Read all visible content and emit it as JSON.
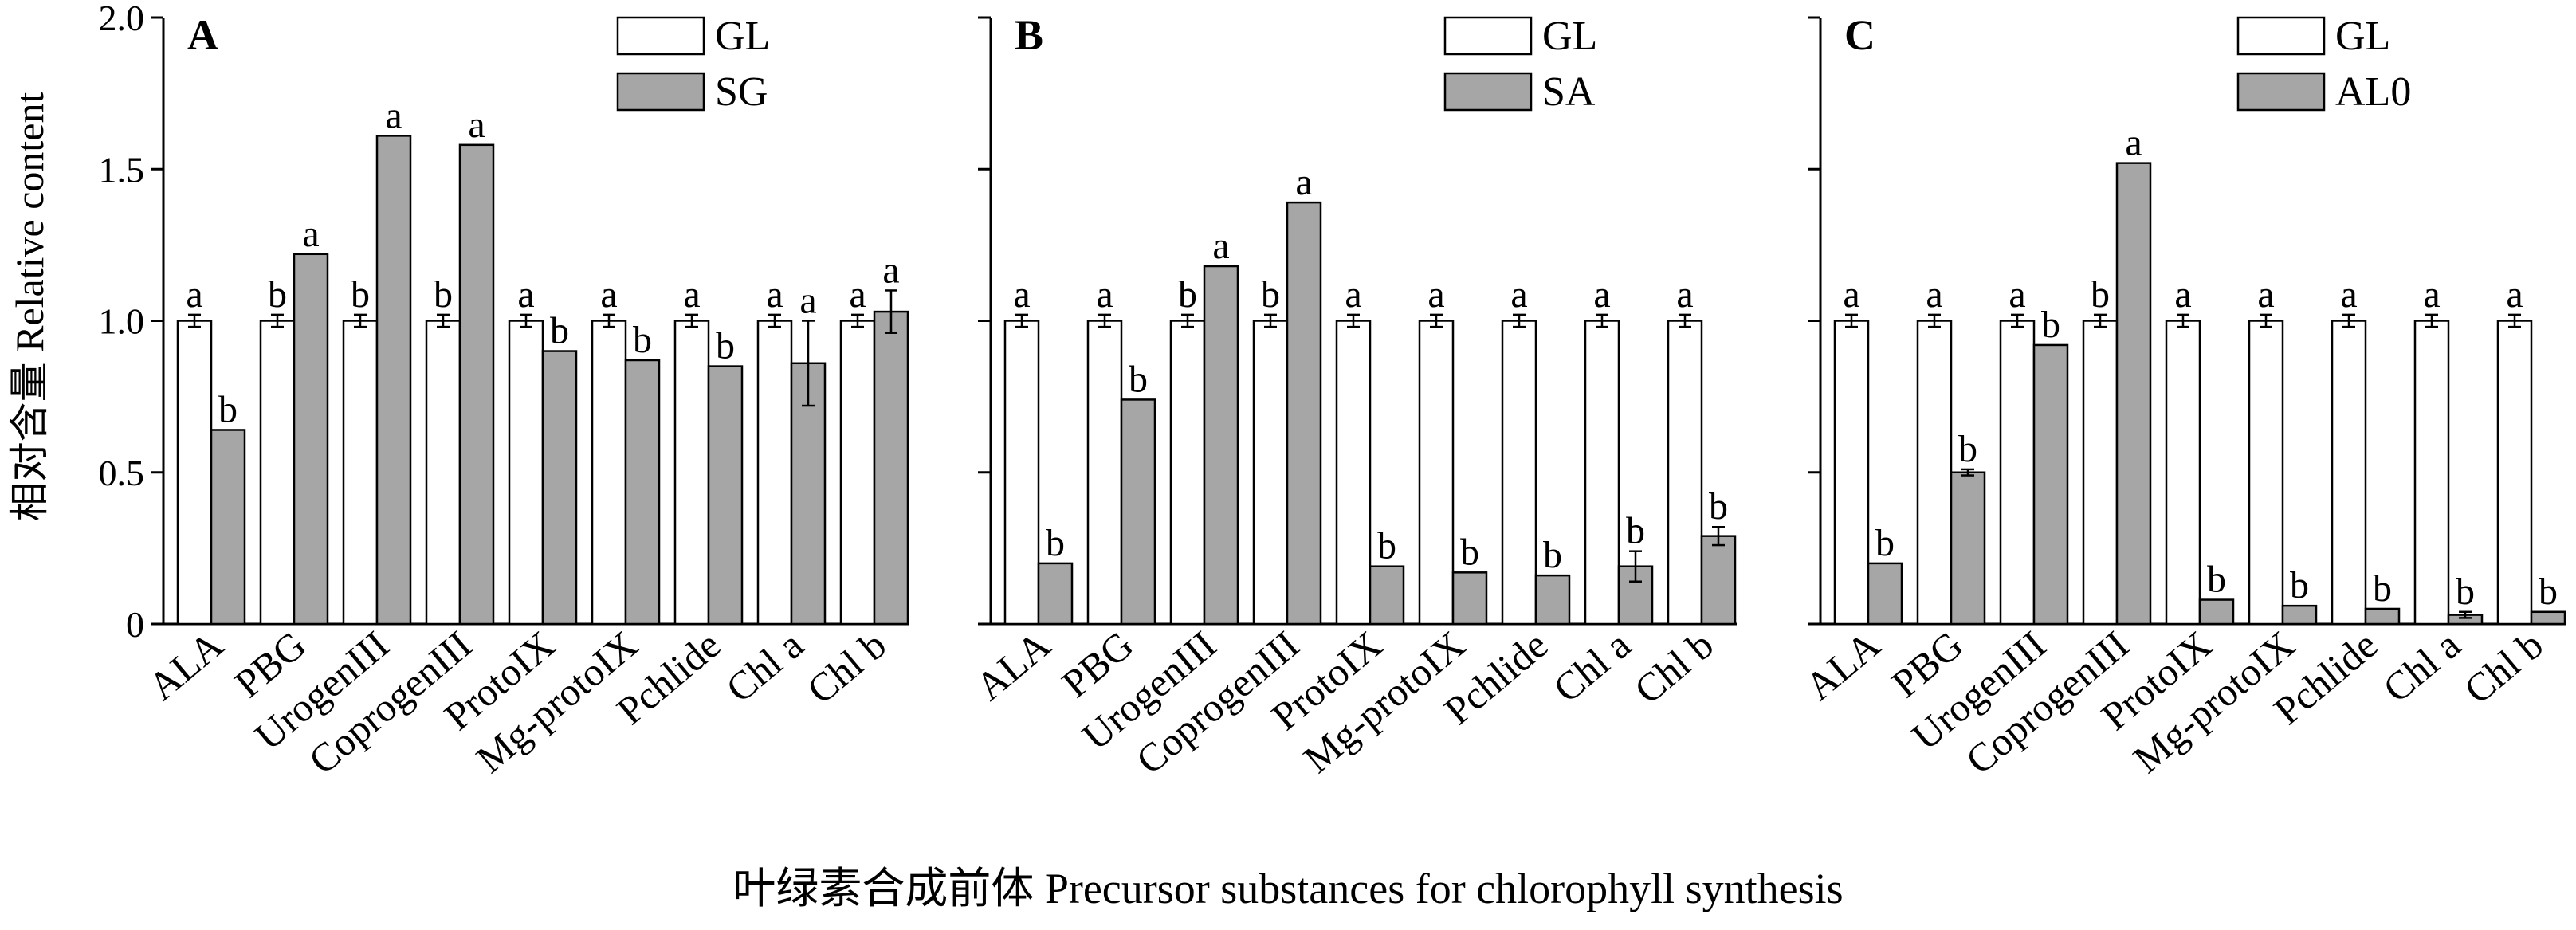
{
  "figure": {
    "y_axis_label": "相对含量 Relative content",
    "x_axis_label": "叶绿素合成前体 Precursor substances for chlorophyll synthesis"
  },
  "colors": {
    "control_fill": "#ffffff",
    "treatment_fill": "#a6a6a6",
    "stroke": "#000000"
  },
  "chart_data": [
    {
      "type": "bar",
      "panel": "A",
      "categories": [
        "ALA",
        "PBG",
        "UrogenIII",
        "CoprogenIII",
        "ProtoIX",
        "Mg-protoIX",
        "Pchlide",
        "Chl a",
        "Chl b"
      ],
      "ylim": [
        0,
        2.0
      ],
      "yticks": [
        0,
        0.5,
        1.0,
        1.5,
        2.0
      ],
      "ytick_labels": [
        "0",
        "0.5",
        "1.0",
        "1.5",
        "2.0"
      ],
      "legend": [
        "GL",
        "SG"
      ],
      "legend_position": "top-right",
      "series": [
        {
          "name": "GL",
          "values": [
            1.0,
            1.0,
            1.0,
            1.0,
            1.0,
            1.0,
            1.0,
            1.0,
            1.0
          ],
          "errors": [
            0.02,
            0.02,
            0.02,
            0.02,
            0.02,
            0.02,
            0.02,
            0.02,
            0.02
          ],
          "letters": [
            "a",
            "b",
            "b",
            "b",
            "a",
            "a",
            "a",
            "a",
            "a"
          ]
        },
        {
          "name": "SG",
          "values": [
            0.64,
            1.22,
            1.61,
            1.58,
            0.9,
            0.87,
            0.85,
            0.86,
            1.03
          ],
          "errors": [
            0.0,
            0.0,
            0.0,
            0.0,
            0.0,
            0.0,
            0.0,
            0.14,
            0.07
          ],
          "letters": [
            "b",
            "a",
            "a",
            "a",
            "b",
            "b",
            "b",
            "a",
            "a"
          ]
        }
      ]
    },
    {
      "type": "bar",
      "panel": "B",
      "categories": [
        "ALA",
        "PBG",
        "UrogenIII",
        "CoprogenIII",
        "ProtoIX",
        "Mg-protoIX",
        "Pchlide",
        "Chl a",
        "Chl b"
      ],
      "ylim": [
        0,
        2.0
      ],
      "yticks": [
        0,
        0.5,
        1.0,
        1.5,
        2.0
      ],
      "ytick_labels": [
        "",
        "",
        "",
        "",
        ""
      ],
      "legend": [
        "GL",
        "SA"
      ],
      "legend_position": "top-right",
      "series": [
        {
          "name": "GL",
          "values": [
            1.0,
            1.0,
            1.0,
            1.0,
            1.0,
            1.0,
            1.0,
            1.0,
            1.0
          ],
          "errors": [
            0.02,
            0.02,
            0.02,
            0.02,
            0.02,
            0.02,
            0.02,
            0.02,
            0.02
          ],
          "letters": [
            "a",
            "a",
            "b",
            "b",
            "a",
            "a",
            "a",
            "a",
            "a"
          ]
        },
        {
          "name": "SA",
          "values": [
            0.2,
            0.74,
            1.18,
            1.39,
            0.19,
            0.17,
            0.16,
            0.19,
            0.29
          ],
          "errors": [
            0.0,
            0.0,
            0.0,
            0.0,
            0.0,
            0.0,
            0.0,
            0.05,
            0.03
          ],
          "letters": [
            "b",
            "b",
            "a",
            "a",
            "b",
            "b",
            "b",
            "b",
            "b"
          ]
        }
      ]
    },
    {
      "type": "bar",
      "panel": "C",
      "categories": [
        "ALA",
        "PBG",
        "UrogenIII",
        "CoprogenIII",
        "ProtoIX",
        "Mg-protoIX",
        "Pchlide",
        "Chl a",
        "Chl b"
      ],
      "ylim": [
        0,
        2.0
      ],
      "yticks": [
        0,
        0.5,
        1.0,
        1.5,
        2.0
      ],
      "ytick_labels": [
        "",
        "",
        "",
        "",
        ""
      ],
      "legend": [
        "GL",
        "AL0"
      ],
      "legend_position": "top-right",
      "series": [
        {
          "name": "GL",
          "values": [
            1.0,
            1.0,
            1.0,
            1.0,
            1.0,
            1.0,
            1.0,
            1.0,
            1.0
          ],
          "errors": [
            0.02,
            0.02,
            0.02,
            0.02,
            0.02,
            0.02,
            0.02,
            0.02,
            0.02
          ],
          "letters": [
            "a",
            "a",
            "a",
            "b",
            "a",
            "a",
            "a",
            "a",
            "a"
          ]
        },
        {
          "name": "AL0",
          "values": [
            0.2,
            0.5,
            0.92,
            1.52,
            0.08,
            0.06,
            0.05,
            0.03,
            0.04
          ],
          "errors": [
            0.0,
            0.01,
            0.0,
            0.0,
            0.0,
            0.0,
            0.0,
            0.01,
            0.0
          ],
          "letters": [
            "b",
            "b",
            "b",
            "a",
            "b",
            "b",
            "b",
            "b",
            "b"
          ]
        }
      ]
    }
  ]
}
